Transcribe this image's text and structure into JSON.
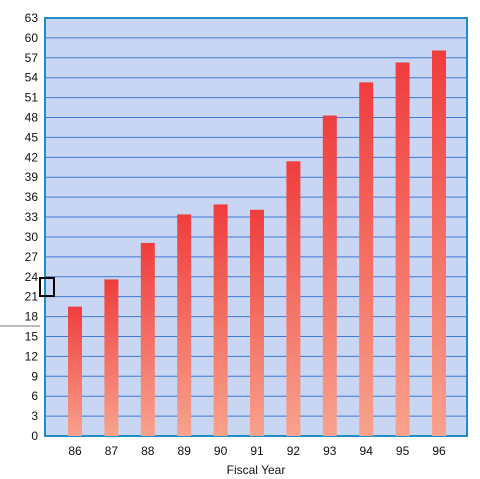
{
  "chart_data": {
    "type": "bar",
    "title": "",
    "xlabel": "Fiscal Year",
    "ylabel": "",
    "categories": [
      "86",
      "87",
      "88",
      "89",
      "90",
      "91",
      "92",
      "93",
      "94",
      "95",
      "96"
    ],
    "values": [
      19.5,
      23.6,
      29.1,
      33.4,
      34.9,
      34.1,
      41.4,
      48.3,
      53.3,
      56.3,
      58.1
    ],
    "ylim": [
      0,
      63
    ],
    "yticks": [
      0,
      3,
      6,
      9,
      12,
      15,
      18,
      21,
      24,
      27,
      30,
      33,
      36,
      39,
      42,
      45,
      48,
      51,
      54,
      57,
      60,
      63
    ],
    "grid": true,
    "legend": "none",
    "colors": {
      "plot_background": "#c9d6f3",
      "plot_border": "#1f8fc9",
      "gridline": "#3f78d6",
      "bar_top": "#ef3d3d",
      "bar_bottom": "#f8a28c"
    }
  }
}
